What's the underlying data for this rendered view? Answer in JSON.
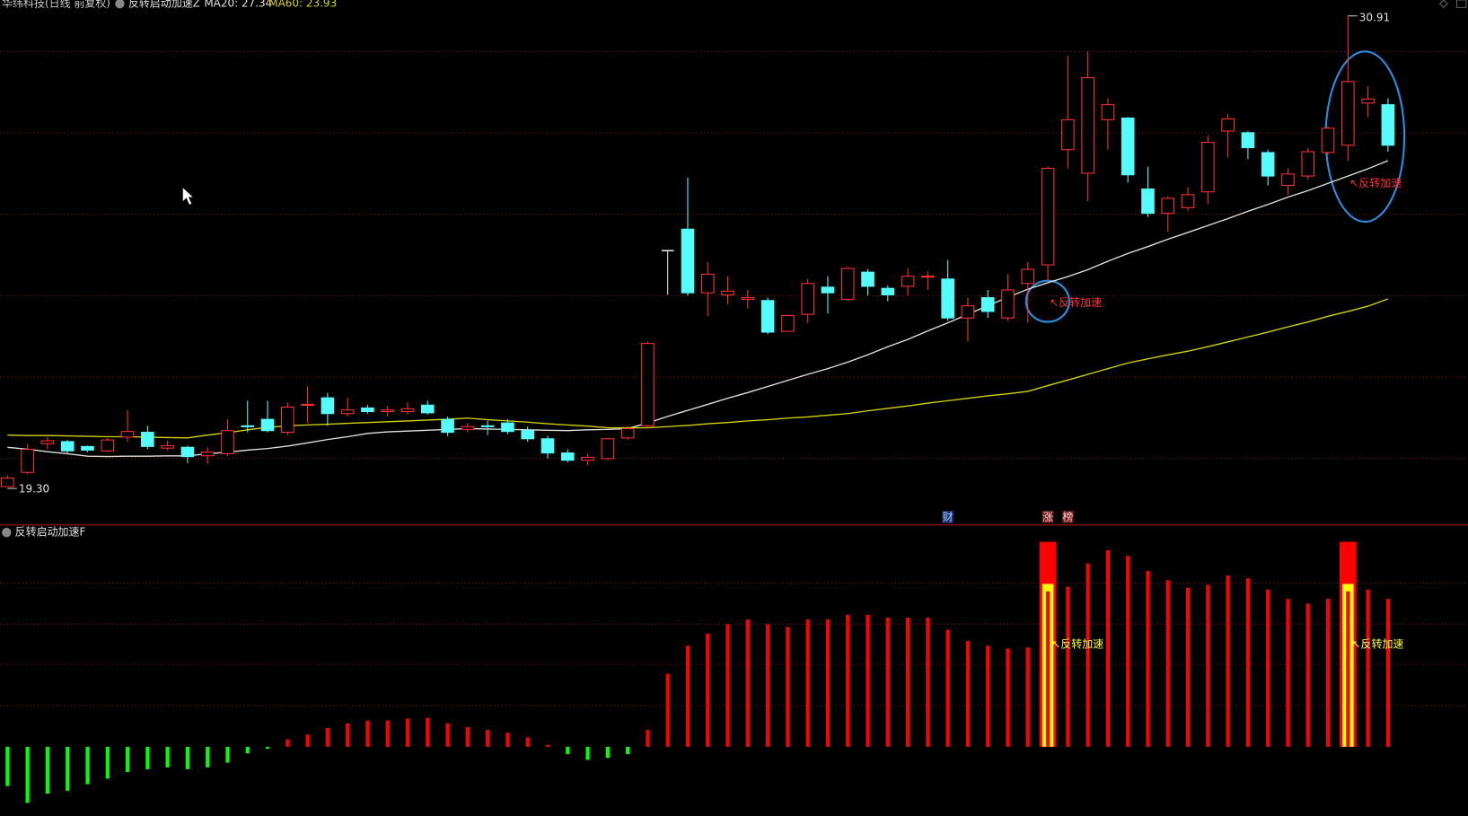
{
  "chart_data": [
    {
      "type": "candlestick",
      "title": "华纬科技(日线 前复权)",
      "indicator": "反转启动加速Z",
      "max_label": "30.91",
      "min_label": "19.30",
      "up_color": "#ff3232",
      "down_color": "#54fcfc",
      "flat_color": "#e8e8e8",
      "open": [
        19.3,
        19.65,
        20.36,
        20.41,
        20.29,
        20.18,
        20.52,
        20.64,
        20.25,
        20.27,
        20.06,
        20.11,
        20.8,
        20.96,
        20.64,
        21.31,
        21.49,
        21.1,
        21.24,
        21.15,
        21.15,
        21.31,
        20.96,
        20.71,
        20.8,
        20.87,
        20.68,
        20.48,
        20.13,
        19.95,
        19.99,
        20.5,
        20.8,
        25.12,
        25.65,
        24.08,
        24.03,
        23.92,
        23.89,
        23.13,
        23.55,
        24.22,
        23.92,
        24.59,
        24.19,
        24.24,
        24.47,
        24.42,
        23.46,
        23.96,
        23.46,
        24.31,
        24.77,
        27.61,
        27.03,
        28.35,
        28.39,
        26.64,
        26.04,
        26.18,
        26.57,
        28.07,
        28.03,
        27.54,
        26.73,
        26.96,
        27.54,
        27.72,
        28.76,
        28.72
      ],
      "close": [
        19.51,
        20.22,
        20.43,
        20.18,
        20.2,
        20.45,
        20.66,
        20.29,
        20.31,
        20.04,
        20.15,
        20.68,
        20.78,
        20.68,
        21.26,
        21.33,
        21.1,
        21.19,
        21.15,
        21.19,
        21.22,
        21.12,
        20.64,
        20.78,
        20.78,
        20.66,
        20.48,
        20.13,
        19.95,
        20.02,
        20.48,
        20.73,
        22.83,
        25.12,
        24.08,
        24.54,
        24.12,
        23.96,
        23.11,
        23.52,
        24.31,
        24.08,
        24.68,
        24.24,
        24.03,
        24.49,
        24.49,
        23.46,
        23.76,
        23.62,
        24.15,
        24.66,
        27.15,
        28.35,
        29.39,
        28.72,
        26.99,
        26.04,
        26.41,
        26.5,
        27.79,
        28.37,
        27.66,
        26.96,
        27.01,
        27.56,
        28.14,
        29.29,
        28.86,
        27.72
      ],
      "high": [
        19.58,
        20.34,
        20.52,
        20.45,
        20.31,
        20.5,
        21.19,
        20.8,
        20.43,
        20.31,
        20.27,
        20.96,
        21.42,
        21.42,
        21.38,
        21.77,
        21.61,
        21.49,
        21.31,
        21.29,
        21.38,
        21.42,
        21.03,
        20.87,
        20.92,
        20.96,
        20.78,
        20.55,
        20.22,
        20.11,
        20.5,
        20.8,
        22.88,
        25.12,
        26.92,
        24.84,
        24.49,
        24.15,
        23.96,
        23.52,
        24.42,
        24.49,
        24.72,
        24.66,
        24.26,
        24.68,
        24.61,
        24.89,
        23.96,
        24.15,
        24.54,
        24.84,
        27.19,
        29.92,
        30.03,
        28.88,
        28.42,
        27.19,
        26.46,
        26.69,
        27.96,
        28.49,
        28.07,
        27.61,
        27.15,
        27.65,
        28.19,
        30.91,
        29.18,
        28.88
      ],
      "low": [
        19.3,
        19.6,
        20.22,
        20.13,
        20.15,
        20.15,
        20.41,
        20.22,
        20.2,
        19.88,
        19.86,
        20.06,
        20.64,
        20.64,
        20.57,
        20.87,
        20.8,
        21.03,
        21.1,
        21.03,
        21.08,
        21.08,
        20.55,
        20.64,
        20.57,
        20.59,
        20.41,
        19.99,
        19.9,
        19.83,
        19.95,
        20.45,
        20.75,
        24.03,
        24.01,
        23.5,
        23.8,
        23.69,
        23.06,
        23.13,
        23.34,
        23.57,
        23.87,
        24.01,
        23.87,
        24.01,
        24.15,
        23.39,
        22.88,
        23.46,
        23.39,
        23.34,
        24.38,
        27.15,
        26.34,
        27.61,
        26.8,
        25.95,
        25.58,
        26.09,
        26.27,
        27.42,
        27.38,
        26.73,
        26.5,
        26.87,
        27.49,
        27.33,
        28.42,
        27.56
      ],
      "series": [
        {
          "name": "MA20: 27.34",
          "color": "#e0e0e0",
          "values": [
            20.27,
            20.22,
            20.16,
            20.11,
            20.05,
            20.04,
            20.05,
            20.05,
            20.06,
            20.06,
            20.11,
            20.15,
            20.2,
            20.24,
            20.3,
            20.38,
            20.46,
            20.53,
            20.61,
            20.65,
            20.67,
            20.69,
            20.71,
            20.73,
            20.72,
            20.71,
            20.7,
            20.69,
            20.68,
            20.7,
            20.71,
            20.73,
            20.87,
            21.03,
            21.18,
            21.33,
            21.48,
            21.62,
            21.77,
            21.92,
            22.07,
            22.21,
            22.37,
            22.55,
            22.75,
            22.93,
            23.14,
            23.34,
            23.55,
            23.76,
            23.97,
            24.17,
            24.33,
            24.48,
            24.65,
            24.86,
            25.05,
            25.22,
            25.4,
            25.57,
            25.74,
            25.91,
            26.09,
            26.26,
            26.44,
            26.6,
            26.78,
            26.96,
            27.14,
            27.34
          ]
        },
        {
          "name": "MA60: 23.93",
          "color": "#d4d400",
          "values": [
            20.57,
            20.56,
            20.56,
            20.55,
            20.54,
            20.53,
            20.53,
            20.52,
            20.51,
            20.5,
            20.57,
            20.63,
            20.7,
            20.76,
            20.8,
            20.82,
            20.84,
            20.86,
            20.88,
            20.9,
            20.92,
            20.94,
            20.96,
            20.99,
            20.95,
            20.92,
            20.89,
            20.85,
            20.82,
            20.79,
            20.75,
            20.75,
            20.75,
            20.78,
            20.81,
            20.85,
            20.88,
            20.92,
            20.95,
            20.99,
            21.02,
            21.06,
            21.1,
            21.17,
            21.23,
            21.29,
            21.36,
            21.42,
            21.48,
            21.54,
            21.59,
            21.65,
            21.79,
            21.93,
            22.07,
            22.21,
            22.35,
            22.45,
            22.55,
            22.64,
            22.75,
            22.87,
            22.99,
            23.11,
            23.24,
            23.36,
            23.5,
            23.62,
            23.75,
            23.93
          ]
        }
      ],
      "annotations": [
        {
          "text": "↖反转加速",
          "at": 52
        },
        {
          "text": "↖反转加速",
          "at": 67
        }
      ],
      "tags": [
        {
          "text": "财",
          "at": 47
        },
        {
          "text": "涨",
          "at": 52
        },
        {
          "text": "榜",
          "at": 53
        }
      ]
    },
    {
      "type": "bar",
      "title": "反转启动加速F",
      "positive_color": "#ff0000",
      "negative_color": "#00ff00",
      "highlight_color": "#ffff00",
      "values": [
        -21,
        -30,
        -25,
        -23.5,
        -20,
        -17,
        -13.5,
        -12,
        -11,
        -12,
        -11,
        -8.5,
        -3.5,
        -1,
        4,
        6.5,
        10,
        12.5,
        14,
        14,
        15,
        15.5,
        12.5,
        10.5,
        9,
        7.5,
        5,
        1,
        -4,
        -7,
        -6,
        -4,
        9,
        39,
        54,
        60.5,
        65.5,
        68,
        65.5,
        64,
        68,
        68,
        70.5,
        70.5,
        69,
        69,
        69,
        62.5,
        56.5,
        54,
        52.5,
        53,
        109.5,
        85.5,
        98,
        105,
        102,
        94,
        89,
        85,
        86.5,
        91.5,
        90,
        84,
        79,
        76.5,
        79,
        109.5,
        84,
        79
      ],
      "annotations": [
        {
          "text": "↖反转加速",
          "at": 52
        },
        {
          "text": "↖反转加速",
          "at": 67
        }
      ]
    }
  ]
}
